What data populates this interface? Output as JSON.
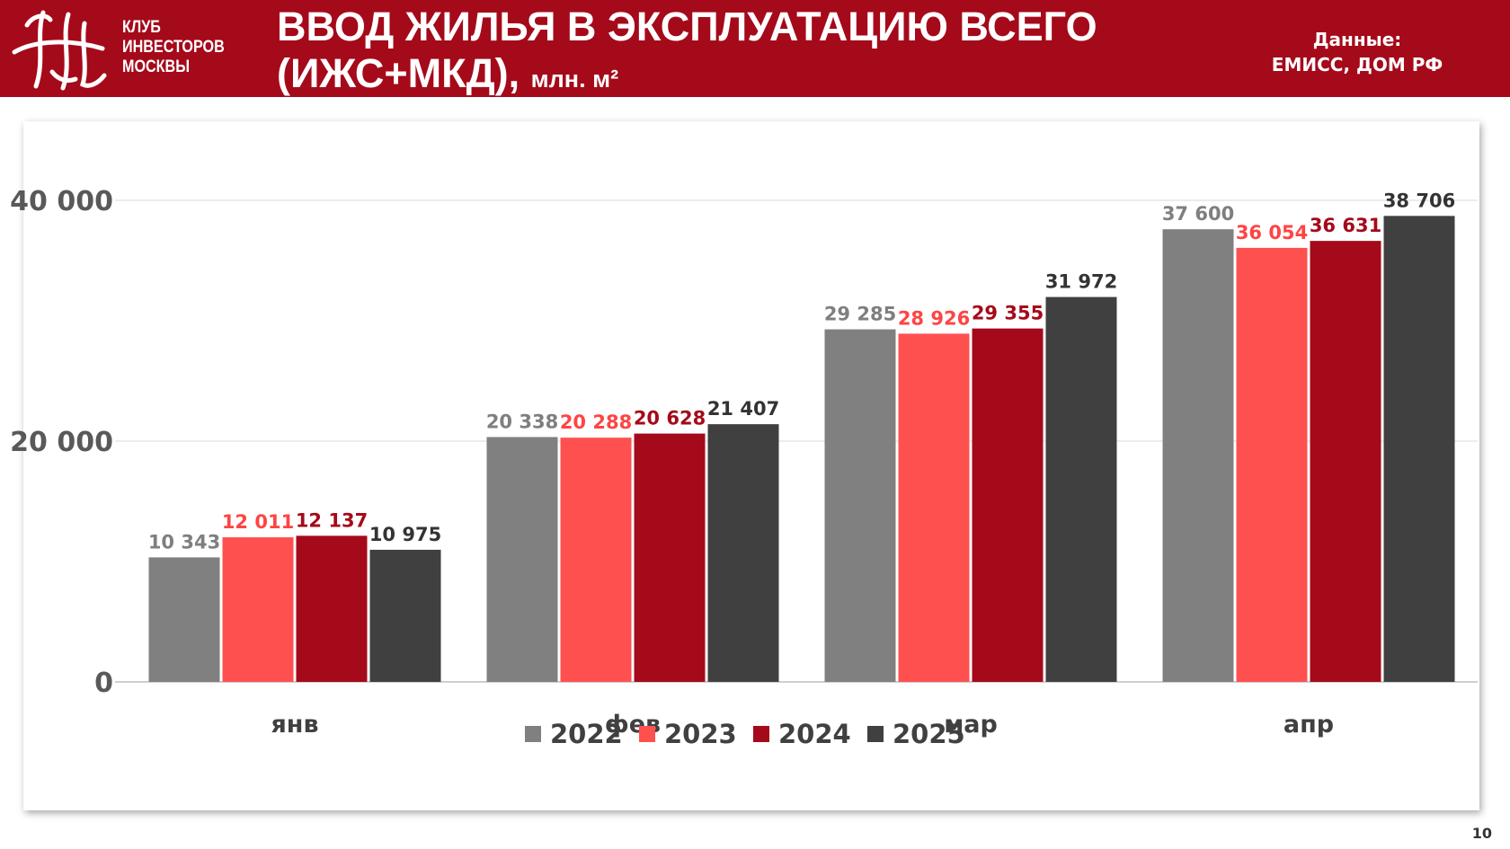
{
  "header": {
    "logo_lines": [
      "КЛУБ",
      "ИНВЕСТОРОВ",
      "МОСКВЫ"
    ],
    "title_line1": "ВВОД ЖИЛЬЯ В ЭКСПЛУАТАЦИЮ ВСЕГО",
    "title_line2": "(ИЖС+МКД),",
    "title_unit": "млн. м²",
    "source_label": "Данные:",
    "source_value": "ЕМИСС, ДОМ РФ",
    "background": "#a50a1a"
  },
  "page_number": "10",
  "chart_data": {
    "type": "bar",
    "title": "",
    "xlabel": "",
    "ylabel": "",
    "categories": [
      "янв",
      "фев",
      "мар",
      "апр"
    ],
    "ylim": [
      0,
      40000
    ],
    "yticks": [
      0,
      20000,
      40000
    ],
    "ytick_labels": [
      "0",
      "20 000",
      "40 000"
    ],
    "grid": true,
    "legend_position": "bottom",
    "series": [
      {
        "name": "2022",
        "color": "#808080",
        "label_color": "#7f7f7f",
        "values": [
          10343,
          20338,
          29285,
          37600
        ],
        "labels": [
          "10 343",
          "20 338",
          "29 285",
          "37 600"
        ]
      },
      {
        "name": "2023",
        "color": "#ff5050",
        "label_color": "#ff4444",
        "values": [
          12011,
          20288,
          28926,
          36054
        ],
        "labels": [
          "12 011",
          "20 288",
          "28 926",
          "36 054"
        ]
      },
      {
        "name": "2024",
        "color": "#a50a1a",
        "label_color": "#a50a1a",
        "values": [
          12137,
          20628,
          29355,
          36631
        ],
        "labels": [
          "12 137",
          "20 628",
          "29 355",
          "36 631"
        ]
      },
      {
        "name": "2025",
        "color": "#404040",
        "label_color": "#333333",
        "values": [
          10975,
          21407,
          31972,
          38706
        ],
        "labels": [
          "10 975",
          "21 407",
          "31 972",
          "38 706"
        ]
      }
    ]
  }
}
